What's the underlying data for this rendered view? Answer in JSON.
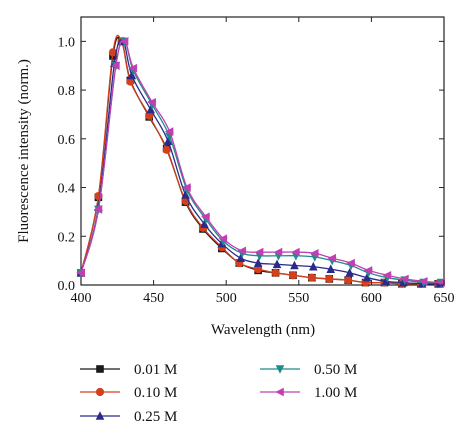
{
  "chart_data": {
    "type": "line",
    "xlabel": "Wavelength (nm)",
    "ylabel": "Fluorescence intensity (norm.)",
    "xlim": [
      400,
      650
    ],
    "ylim": [
      0.0,
      1.1
    ],
    "xticks": [
      400,
      450,
      500,
      550,
      600,
      650
    ],
    "yticks": [
      0.0,
      0.2,
      0.4,
      0.6,
      0.8,
      1.0
    ],
    "xtick_labels": [
      "400",
      "450",
      "500",
      "550",
      "600",
      "650"
    ],
    "ytick_labels": [
      "0.0",
      "0.2",
      "0.4",
      "0.6",
      "0.8",
      "1.0"
    ],
    "grid": false,
    "legend_position": "below",
    "colors": {
      "0.01 M": "#1a1a1a",
      "0.10 M": "#d2401e",
      "0.25 M": "#2a2a8c",
      "0.50 M": "#1e8c8c",
      "1.00 M": "#c040b4"
    },
    "series": [
      {
        "name": "0.01 M",
        "marker": "square",
        "x": [
          400,
          412,
          422,
          428,
          434,
          447,
          459,
          472,
          484,
          497,
          509,
          522,
          534,
          546,
          559,
          571,
          584,
          596,
          609,
          621,
          634,
          646
        ],
        "y": [
          0.05,
          0.36,
          0.94,
          1.0,
          0.84,
          0.69,
          0.56,
          0.34,
          0.23,
          0.15,
          0.09,
          0.06,
          0.05,
          0.04,
          0.03,
          0.025,
          0.02,
          0.01,
          0.01,
          0.005,
          0.005,
          0.005
        ]
      },
      {
        "name": "0.10 M",
        "marker": "circle",
        "x": [
          400,
          412,
          422,
          428,
          434,
          447,
          459,
          472,
          484,
          497,
          509,
          522,
          534,
          546,
          559,
          571,
          584,
          596,
          609,
          621,
          634,
          646
        ],
        "y": [
          0.05,
          0.365,
          0.955,
          1.0,
          0.835,
          0.695,
          0.555,
          0.345,
          0.235,
          0.155,
          0.09,
          0.065,
          0.05,
          0.04,
          0.03,
          0.025,
          0.02,
          0.01,
          0.01,
          0.005,
          0.005,
          0.005
        ]
      },
      {
        "name": "0.25 M",
        "marker": "triangle-up",
        "x": [
          400,
          412,
          423,
          429,
          435,
          448,
          460,
          472,
          485,
          497,
          510,
          522,
          535,
          547,
          560,
          572,
          585,
          597,
          610,
          622,
          635,
          647
        ],
        "y": [
          0.05,
          0.32,
          0.91,
          1.0,
          0.86,
          0.72,
          0.59,
          0.37,
          0.25,
          0.17,
          0.11,
          0.09,
          0.085,
          0.08,
          0.075,
          0.065,
          0.05,
          0.03,
          0.015,
          0.01,
          0.005,
          0.005
        ]
      },
      {
        "name": "0.50 M",
        "marker": "triangle-down",
        "x": [
          400,
          412,
          424,
          430,
          436,
          449,
          461,
          473,
          486,
          498,
          511,
          523,
          536,
          548,
          561,
          573,
          586,
          598,
          611,
          623,
          636,
          648
        ],
        "y": [
          0.05,
          0.31,
          0.9,
          1.0,
          0.88,
          0.74,
          0.61,
          0.39,
          0.27,
          0.18,
          0.13,
          0.12,
          0.12,
          0.12,
          0.115,
          0.1,
          0.08,
          0.05,
          0.03,
          0.02,
          0.01,
          0.01
        ]
      },
      {
        "name": "1.00 M",
        "marker": "triangle-left",
        "x": [
          400,
          412,
          424,
          430,
          436,
          449,
          461,
          473,
          486,
          498,
          511,
          523,
          536,
          548,
          561,
          573,
          586,
          598,
          611,
          623,
          636,
          648
        ],
        "y": [
          0.05,
          0.31,
          0.9,
          1.0,
          0.89,
          0.75,
          0.63,
          0.4,
          0.28,
          0.19,
          0.14,
          0.135,
          0.135,
          0.135,
          0.13,
          0.11,
          0.09,
          0.06,
          0.04,
          0.025,
          0.015,
          0.01
        ]
      }
    ]
  }
}
